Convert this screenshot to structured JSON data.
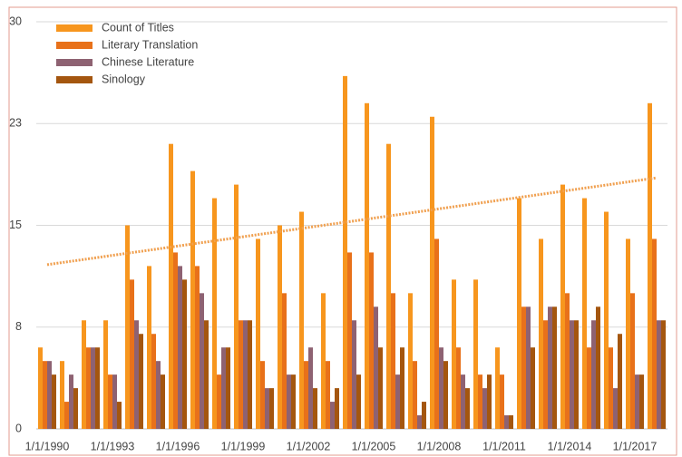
{
  "chart_data": {
    "type": "bar",
    "categories": [
      "1/1/1990",
      null,
      null,
      "1/1/1993",
      null,
      null,
      "1/1/1996",
      null,
      null,
      "1/1/1999",
      null,
      null,
      "1/1/2002",
      null,
      null,
      "1/1/2005",
      null,
      null,
      "1/1/2008",
      null,
      null,
      "1/1/2011",
      null,
      null,
      "1/1/2014",
      null,
      null,
      "1/1/2017",
      null
    ],
    "series": [
      {
        "name": "Count of Titles",
        "color": "#f7961e",
        "values": [
          6,
          5,
          8,
          8,
          15,
          12,
          21,
          19,
          17,
          18,
          14,
          15,
          16,
          10,
          26,
          24,
          21,
          10,
          23,
          11,
          11,
          6,
          17,
          14,
          18,
          17,
          16,
          14,
          24
        ]
      },
      {
        "name": "Literary Translation",
        "color": "#e8711a",
        "values": [
          5,
          2,
          6,
          4,
          11,
          7,
          13,
          12,
          4,
          8,
          5,
          10,
          5,
          5,
          13,
          13,
          10,
          5,
          14,
          6,
          4,
          4,
          9,
          8,
          10,
          6,
          6,
          10,
          14
        ]
      },
      {
        "name": "Chinese Literature",
        "color": "#8e6272",
        "values": [
          5,
          4,
          6,
          4,
          8,
          5,
          12,
          10,
          6,
          8,
          3,
          4,
          6,
          2,
          8,
          9,
          4,
          1,
          6,
          4,
          3,
          1,
          9,
          9,
          8,
          8,
          3,
          4,
          8
        ]
      },
      {
        "name": "Sinology",
        "color": "#a4560f",
        "values": [
          4,
          3,
          6,
          2,
          7,
          4,
          11,
          8,
          6,
          8,
          3,
          4,
          3,
          3,
          4,
          6,
          6,
          2,
          5,
          3,
          4,
          1,
          6,
          9,
          8,
          9,
          7,
          4,
          8
        ]
      }
    ],
    "trendline": {
      "color": "#f0a050",
      "values": [
        12.1,
        18.5
      ]
    },
    "ylim": [
      0,
      30
    ],
    "yticks": [
      0,
      {
        "value": 7.5,
        "label": "8"
      },
      15,
      {
        "value": 22.5,
        "label": "23"
      },
      30
    ],
    "grid": true,
    "legend": "top-left"
  }
}
